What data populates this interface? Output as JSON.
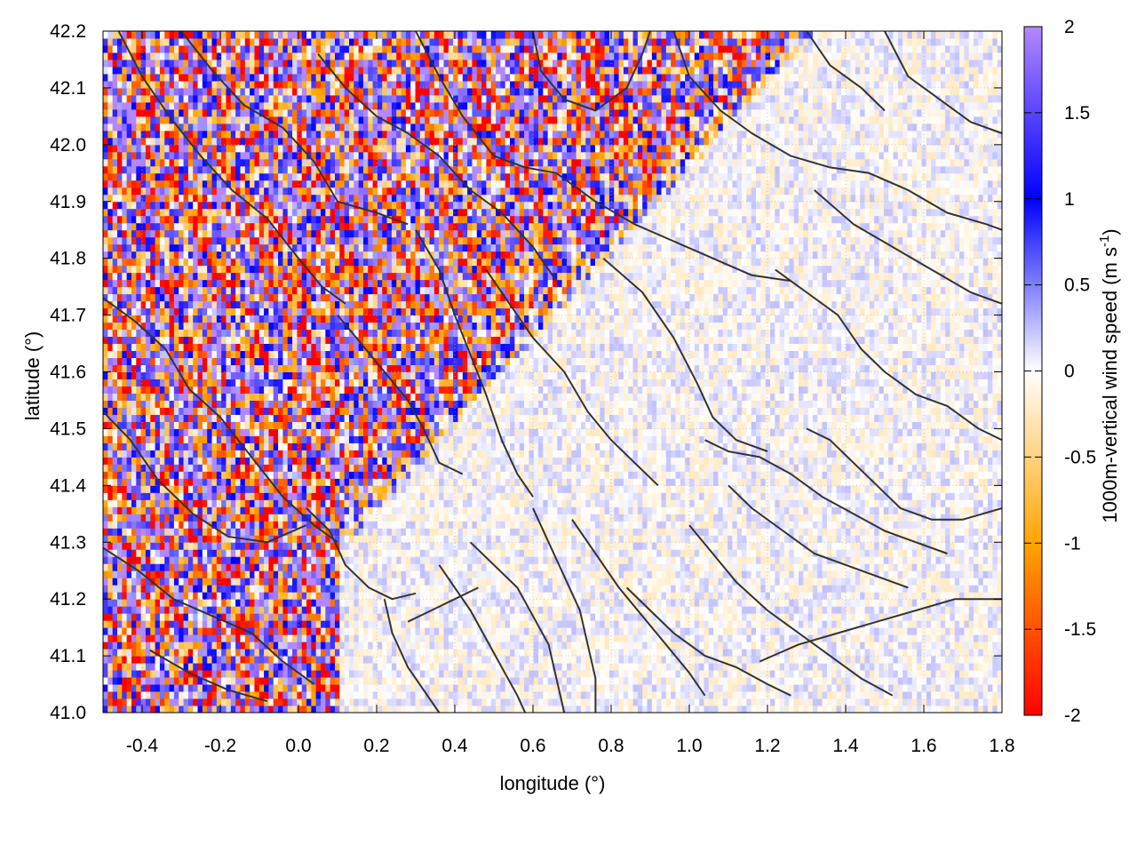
{
  "chart_data": {
    "type": "heatmap",
    "xlabel": "longitude (°)",
    "ylabel": "latitude (°)",
    "colorbar_label": {
      "main": "1000m-vertical wind speed (m s",
      "superscript": "-1",
      "close": ")"
    },
    "xlim": [
      -0.5,
      1.8
    ],
    "ylim": [
      41.0,
      42.2
    ],
    "clim": [
      -2,
      2
    ],
    "x_ticks": [
      "-0.4",
      "-0.2",
      "0.0",
      "0.2",
      "0.4",
      "0.6",
      "0.8",
      "1.0",
      "1.2",
      "1.4",
      "1.6",
      "1.8"
    ],
    "x_tick_values": [
      -0.4,
      -0.2,
      0.0,
      0.2,
      0.4,
      0.6,
      0.8,
      1.0,
      1.2,
      1.4,
      1.6,
      1.8
    ],
    "y_ticks": [
      "41.0",
      "41.1",
      "41.2",
      "41.3",
      "41.4",
      "41.5",
      "41.6",
      "41.7",
      "41.8",
      "41.9",
      "42.0",
      "42.1",
      "42.2"
    ],
    "y_tick_values": [
      41.0,
      41.1,
      41.2,
      41.3,
      41.4,
      41.5,
      41.6,
      41.7,
      41.8,
      41.9,
      42.0,
      42.1,
      42.2
    ],
    "colorbar_ticks": [
      "2",
      "1.5",
      "1",
      "0.5",
      "0",
      "-0.5",
      "-1",
      "-1.5",
      "-2"
    ],
    "colorbar_tick_values": [
      2,
      1.5,
      1,
      0.5,
      0,
      -0.5,
      -1,
      -1.5,
      -2
    ],
    "colormap": [
      {
        "value": -2,
        "color": "#ff0000"
      },
      {
        "value": -1,
        "color": "#ffa500"
      },
      {
        "value": 0,
        "color": "#ffffff"
      },
      {
        "value": 1,
        "color": "#0000ff"
      },
      {
        "value": 2,
        "color": "#b388ff"
      }
    ],
    "contour_color": "#333333",
    "grid": true,
    "field_description": "wind-speed field: noisy positive/negative values across the northern and western area; near-zero values over the south-east",
    "contours": [
      [
        [
          -0.5,
          41.73
        ],
        [
          -0.42,
          41.69
        ],
        [
          -0.34,
          41.64
        ],
        [
          -0.28,
          41.57
        ],
        [
          -0.2,
          41.52
        ],
        [
          -0.12,
          41.45
        ],
        [
          -0.04,
          41.38
        ],
        [
          0.04,
          41.33
        ],
        [
          0.1,
          41.3
        ]
      ],
      [
        [
          -0.5,
          41.53
        ],
        [
          -0.43,
          41.48
        ],
        [
          -0.36,
          41.41
        ],
        [
          -0.27,
          41.35
        ],
        [
          -0.18,
          41.31
        ],
        [
          -0.08,
          41.3
        ],
        [
          0.02,
          41.33
        ]
      ],
      [
        [
          -0.5,
          41.29
        ],
        [
          -0.41,
          41.25
        ],
        [
          -0.32,
          41.2
        ],
        [
          -0.22,
          41.17
        ],
        [
          -0.12,
          41.14
        ],
        [
          -0.04,
          41.09
        ],
        [
          0.04,
          41.05
        ]
      ],
      [
        [
          -0.38,
          41.11
        ],
        [
          -0.28,
          41.07
        ],
        [
          -0.18,
          41.04
        ],
        [
          -0.08,
          41.02
        ]
      ],
      [
        [
          -0.46,
          42.2
        ],
        [
          -0.4,
          42.12
        ],
        [
          -0.33,
          42.05
        ],
        [
          -0.25,
          41.98
        ],
        [
          -0.17,
          41.92
        ],
        [
          -0.08,
          41.87
        ],
        [
          0.0,
          41.8
        ],
        [
          0.06,
          41.75
        ],
        [
          0.12,
          41.72
        ]
      ],
      [
        [
          -0.3,
          42.2
        ],
        [
          -0.22,
          42.13
        ],
        [
          -0.14,
          42.07
        ],
        [
          -0.04,
          42.03
        ],
        [
          0.04,
          41.97
        ],
        [
          0.1,
          41.9
        ],
        [
          0.2,
          41.88
        ],
        [
          0.28,
          41.86
        ]
      ],
      [
        [
          0.1,
          41.7
        ],
        [
          0.16,
          41.65
        ],
        [
          0.22,
          41.6
        ],
        [
          0.28,
          41.55
        ],
        [
          0.32,
          41.5
        ],
        [
          0.36,
          41.44
        ],
        [
          0.42,
          41.42
        ]
      ],
      [
        [
          0.3,
          42.2
        ],
        [
          0.36,
          42.12
        ],
        [
          0.42,
          42.05
        ],
        [
          0.5,
          41.98
        ],
        [
          0.58,
          41.96
        ],
        [
          0.66,
          41.95
        ]
      ],
      [
        [
          0.05,
          42.16
        ],
        [
          0.12,
          42.1
        ],
        [
          0.2,
          42.05
        ],
        [
          0.28,
          42.02
        ],
        [
          0.36,
          41.98
        ],
        [
          0.44,
          41.92
        ],
        [
          0.52,
          41.88
        ],
        [
          0.6,
          41.82
        ],
        [
          0.66,
          41.76
        ]
      ],
      [
        [
          0.3,
          41.85
        ],
        [
          0.36,
          41.78
        ],
        [
          0.4,
          41.7
        ],
        [
          0.44,
          41.63
        ],
        [
          0.48,
          41.56
        ],
        [
          0.52,
          41.48
        ],
        [
          0.56,
          41.42
        ],
        [
          0.6,
          41.38
        ]
      ],
      [
        [
          0.48,
          41.78
        ],
        [
          0.54,
          41.72
        ],
        [
          0.6,
          41.66
        ],
        [
          0.68,
          41.6
        ],
        [
          0.74,
          41.53
        ],
        [
          0.8,
          41.48
        ],
        [
          0.86,
          41.44
        ],
        [
          0.92,
          41.4
        ]
      ],
      [
        [
          0.66,
          41.95
        ],
        [
          0.76,
          41.9
        ],
        [
          0.86,
          41.86
        ],
        [
          0.96,
          41.83
        ],
        [
          1.06,
          41.8
        ],
        [
          1.16,
          41.77
        ],
        [
          1.26,
          41.76
        ]
      ],
      [
        [
          0.78,
          41.8
        ],
        [
          0.88,
          41.74
        ],
        [
          0.96,
          41.66
        ],
        [
          1.02,
          41.58
        ],
        [
          1.06,
          41.52
        ],
        [
          1.12,
          41.48
        ],
        [
          1.2,
          41.46
        ]
      ],
      [
        [
          0.96,
          42.2
        ],
        [
          1.0,
          42.12
        ],
        [
          1.08,
          42.06
        ],
        [
          1.16,
          42.02
        ],
        [
          1.26,
          41.98
        ],
        [
          1.36,
          41.96
        ],
        [
          1.46,
          41.95
        ],
        [
          1.56,
          41.92
        ],
        [
          1.66,
          41.88
        ],
        [
          1.76,
          41.86
        ],
        [
          1.8,
          41.85
        ]
      ],
      [
        [
          0.6,
          42.2
        ],
        [
          0.62,
          42.13
        ],
        [
          0.68,
          42.08
        ],
        [
          0.76,
          42.06
        ],
        [
          0.84,
          42.1
        ],
        [
          0.88,
          42.16
        ],
        [
          0.9,
          42.2
        ]
      ],
      [
        [
          1.22,
          41.78
        ],
        [
          1.3,
          41.74
        ],
        [
          1.38,
          41.7
        ],
        [
          1.44,
          41.64
        ],
        [
          1.5,
          41.6
        ],
        [
          1.58,
          41.56
        ],
        [
          1.66,
          41.54
        ],
        [
          1.74,
          41.5
        ],
        [
          1.8,
          41.48
        ]
      ],
      [
        [
          1.32,
          41.92
        ],
        [
          1.42,
          41.86
        ],
        [
          1.52,
          41.82
        ],
        [
          1.62,
          41.78
        ],
        [
          1.72,
          41.74
        ],
        [
          1.8,
          41.72
        ]
      ],
      [
        [
          1.5,
          42.2
        ],
        [
          1.56,
          42.12
        ],
        [
          1.64,
          42.08
        ],
        [
          1.72,
          42.04
        ],
        [
          1.8,
          42.02
        ]
      ],
      [
        [
          1.3,
          42.2
        ],
        [
          1.36,
          42.14
        ],
        [
          1.44,
          42.1
        ],
        [
          1.5,
          42.06
        ]
      ],
      [
        [
          0.22,
          41.2
        ],
        [
          0.24,
          41.14
        ],
        [
          0.28,
          41.08
        ],
        [
          0.32,
          41.04
        ],
        [
          0.36,
          41.0
        ]
      ],
      [
        [
          0.28,
          41.16
        ],
        [
          0.34,
          41.18
        ],
        [
          0.4,
          41.2
        ],
        [
          0.46,
          41.22
        ]
      ],
      [
        [
          0.36,
          41.26
        ],
        [
          0.4,
          41.22
        ],
        [
          0.44,
          41.18
        ],
        [
          0.48,
          41.13
        ],
        [
          0.52,
          41.08
        ],
        [
          0.56,
          41.03
        ],
        [
          0.58,
          41.0
        ]
      ],
      [
        [
          0.44,
          41.3
        ],
        [
          0.5,
          41.26
        ],
        [
          0.56,
          41.22
        ],
        [
          0.6,
          41.17
        ],
        [
          0.64,
          41.12
        ],
        [
          0.66,
          41.06
        ],
        [
          0.68,
          41.0
        ]
      ],
      [
        [
          0.6,
          41.36
        ],
        [
          0.64,
          41.3
        ],
        [
          0.68,
          41.24
        ],
        [
          0.72,
          41.18
        ],
        [
          0.74,
          41.12
        ],
        [
          0.76,
          41.06
        ],
        [
          0.76,
          41.0
        ]
      ],
      [
        [
          0.7,
          41.34
        ],
        [
          0.76,
          41.28
        ],
        [
          0.82,
          41.22
        ],
        [
          0.88,
          41.17
        ],
        [
          0.94,
          41.12
        ],
        [
          1.0,
          41.07
        ],
        [
          1.04,
          41.03
        ]
      ],
      [
        [
          0.84,
          41.22
        ],
        [
          0.9,
          41.18
        ],
        [
          0.96,
          41.14
        ],
        [
          1.04,
          41.1
        ],
        [
          1.12,
          41.08
        ],
        [
          1.2,
          41.05
        ],
        [
          1.26,
          41.03
        ]
      ],
      [
        [
          1.0,
          41.33
        ],
        [
          1.06,
          41.28
        ],
        [
          1.12,
          41.23
        ],
        [
          1.2,
          41.18
        ],
        [
          1.28,
          41.14
        ],
        [
          1.36,
          41.1
        ],
        [
          1.44,
          41.06
        ],
        [
          1.52,
          41.03
        ]
      ],
      [
        [
          1.1,
          41.4
        ],
        [
          1.16,
          41.36
        ],
        [
          1.24,
          41.32
        ],
        [
          1.32,
          41.28
        ],
        [
          1.4,
          41.26
        ],
        [
          1.48,
          41.24
        ],
        [
          1.56,
          41.22
        ]
      ],
      [
        [
          1.18,
          41.09
        ],
        [
          1.28,
          41.12
        ],
        [
          1.38,
          41.14
        ],
        [
          1.48,
          41.16
        ],
        [
          1.58,
          41.18
        ],
        [
          1.68,
          41.2
        ],
        [
          1.8,
          41.2
        ]
      ],
      [
        [
          1.04,
          41.48
        ],
        [
          1.1,
          41.46
        ],
        [
          1.18,
          41.45
        ],
        [
          1.26,
          41.42
        ],
        [
          1.34,
          41.38
        ],
        [
          1.42,
          41.35
        ],
        [
          1.5,
          41.32
        ],
        [
          1.58,
          41.3
        ],
        [
          1.66,
          41.28
        ]
      ],
      [
        [
          1.3,
          41.5
        ],
        [
          1.36,
          41.48
        ],
        [
          1.42,
          41.44
        ],
        [
          1.48,
          41.4
        ],
        [
          1.54,
          41.36
        ],
        [
          1.62,
          41.34
        ],
        [
          1.7,
          41.34
        ],
        [
          1.8,
          41.36
        ]
      ],
      [
        [
          0.02,
          41.36
        ],
        [
          0.08,
          41.32
        ],
        [
          0.12,
          41.26
        ],
        [
          0.18,
          41.22
        ],
        [
          0.24,
          41.2
        ],
        [
          0.3,
          41.21
        ]
      ]
    ]
  }
}
